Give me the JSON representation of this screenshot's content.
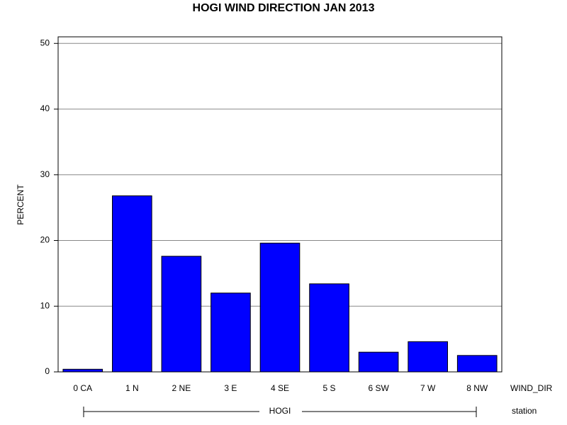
{
  "chart_data": {
    "type": "bar",
    "title": "HOGI WIND DIRECTION JAN 2013",
    "y_label": "PERCENT",
    "x_label": "WIND_DIR",
    "group_axis_label": "station",
    "group": "HOGI",
    "categories": [
      "0 CA",
      "1 N",
      "2 NE",
      "3 E",
      "4 SE",
      "5 S",
      "6 SW",
      "7 W",
      "8 NW"
    ],
    "values": [
      0.4,
      26.8,
      17.6,
      12.0,
      19.6,
      13.4,
      3.0,
      4.6,
      2.5
    ],
    "color": "#0000ff",
    "ylim": [
      0,
      51
    ],
    "yticks": [
      0,
      10,
      20,
      30,
      40,
      50
    ],
    "grid": true
  }
}
